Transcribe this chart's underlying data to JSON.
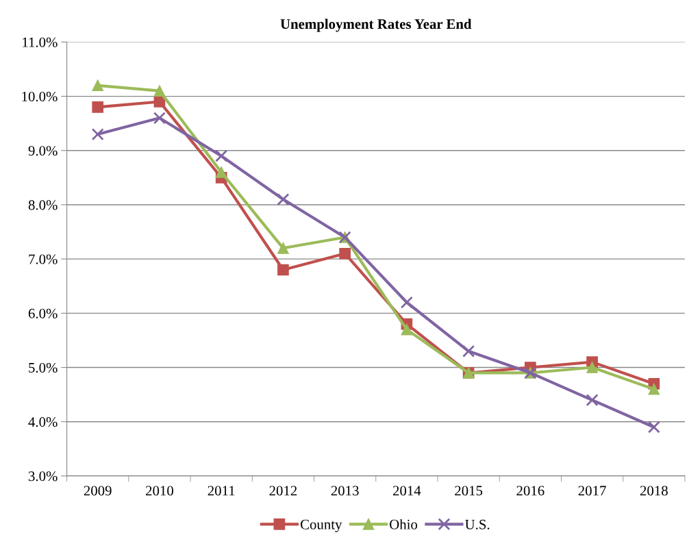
{
  "chart_data": {
    "type": "line",
    "title": "Unemployment Rates Year End",
    "categories": [
      "2009",
      "2010",
      "2011",
      "2012",
      "2013",
      "2014",
      "2015",
      "2016",
      "2017",
      "2018"
    ],
    "series": [
      {
        "name": "County",
        "color": "#c0504d",
        "marker": "square",
        "values": [
          9.8,
          9.9,
          8.5,
          6.8,
          7.1,
          5.8,
          4.9,
          5.0,
          5.1,
          4.7
        ]
      },
      {
        "name": "Ohio",
        "color": "#9bbb59",
        "marker": "triangle",
        "values": [
          10.2,
          10.1,
          8.6,
          7.2,
          7.4,
          5.7,
          4.9,
          4.9,
          5.0,
          4.6
        ]
      },
      {
        "name": "U.S.",
        "color": "#8064a2",
        "marker": "cross",
        "values": [
          9.3,
          9.6,
          8.9,
          8.1,
          7.4,
          6.2,
          5.3,
          4.9,
          4.4,
          3.9
        ]
      }
    ],
    "ylim": [
      3.0,
      11.0
    ],
    "yticks": [
      {
        "value": 3.0,
        "label": "3.0%"
      },
      {
        "value": 4.0,
        "label": "4.0%"
      },
      {
        "value": 5.0,
        "label": "5.0%"
      },
      {
        "value": 6.0,
        "label": "6.0%"
      },
      {
        "value": 7.0,
        "label": "7.0%"
      },
      {
        "value": 8.0,
        "label": "8.0%"
      },
      {
        "value": 9.0,
        "label": "9.0%"
      },
      {
        "value": 10.0,
        "label": "10.0%"
      },
      {
        "value": 11.0,
        "label": "11.0%"
      }
    ],
    "grid": "y",
    "legend": "bottom",
    "line_style": "solid"
  }
}
